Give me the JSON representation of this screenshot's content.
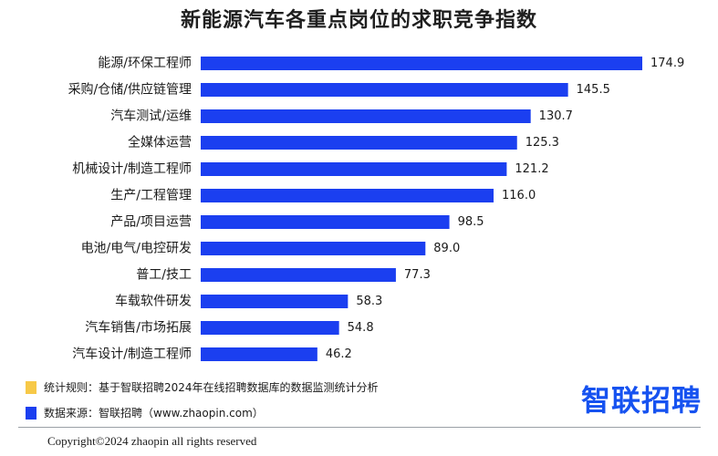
{
  "colors": {
    "bar": "#1b3ff0",
    "rule_swatch": "#f7c948",
    "source_swatch": "#1b3ff0",
    "brand": "#1652f0"
  },
  "chart_data": {
    "type": "bar",
    "orientation": "horizontal",
    "title": "新能源汽车各重点岗位的求职竞争指数",
    "categories": [
      "能源/环保工程师",
      "采购/仓储/供应链管理",
      "汽车测试/运维",
      "全媒体运营",
      "机械设计/制造工程师",
      "生产/工程管理",
      "产品/项目运营",
      "电池/电气/电控研发",
      "普工/技工",
      "车载软件研发",
      "汽车销售/市场拓展",
      "汽车设计/制造工程师"
    ],
    "values": [
      174.9,
      145.5,
      130.7,
      125.3,
      121.2,
      116.0,
      98.5,
      89.0,
      77.3,
      58.3,
      54.8,
      46.2
    ],
    "value_labels": [
      "174.9",
      "145.5",
      "130.7",
      "125.3",
      "121.2",
      "116.0",
      "98.5",
      "89.0",
      "77.3",
      "58.3",
      "54.8",
      "46.2"
    ],
    "xlim": [
      0,
      174.9
    ],
    "grid": false,
    "legend": "none"
  },
  "notes": {
    "rule": "统计规则：基于智联招聘2024年在线招聘数据库的数据监测统计分析",
    "source": "数据来源：智联招聘（www.zhaopin.com）"
  },
  "brand": {
    "logo_text": "智联招聘"
  },
  "copyright": "Copyright©2024 zhaopin all rights reserved"
}
